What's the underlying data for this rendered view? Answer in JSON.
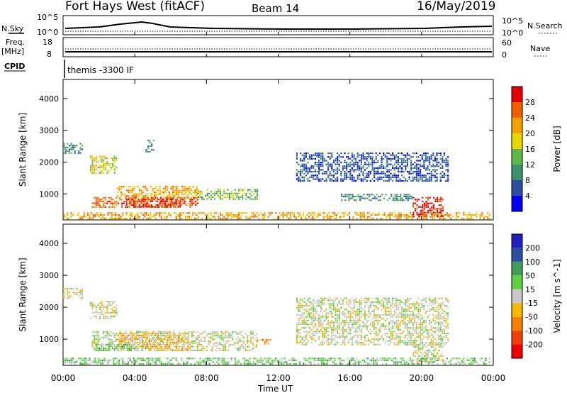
{
  "header": {
    "station": "Fort Hays West (fitACF)",
    "beam": "Beam 14",
    "date": "16/May/2019"
  },
  "summary": {
    "nsky_label": "N.Sky",
    "nsky_ticks": [
      "10^5",
      "10^0"
    ],
    "nsearch_label": "N.Search",
    "nsearch_ticks": [
      "10^5",
      "10^0"
    ],
    "freq_label_1": "Freq.",
    "freq_label_2": "[MHz]",
    "freq_ticks": [
      "18",
      "8"
    ],
    "nave_label": "Nave",
    "nave_ticks": [
      "60",
      "0"
    ],
    "cpid_label": "CPID",
    "cpid_text": "themis -3300 IF"
  },
  "colors": {
    "power": [
      "#0000ee",
      "#2b4fa0",
      "#3f8f6a",
      "#5fb84a",
      "#e8d800",
      "#f5a000",
      "#f06000",
      "#e00000"
    ],
    "velocity": [
      "#ee0000",
      "#f04000",
      "#f58000",
      "#f5b800",
      "#c8c8c8",
      "#5fd040",
      "#3f9f5a",
      "#2b4fa0",
      "#2020c0"
    ]
  },
  "chart_data": [
    {
      "type": "heatmap",
      "panel": "power",
      "xlabel": "",
      "ylabel": "Slant Range [km]",
      "ylim": [
        180,
        4600
      ],
      "yticks": [
        "1000",
        "2000",
        "3000",
        "4000"
      ],
      "ytick_values": [
        1000,
        2000,
        3000,
        4000
      ],
      "colorbar_label": "Power [dB]",
      "colorbar_ticks": [
        "4",
        "8",
        "12",
        "16",
        "20",
        "24",
        "28"
      ],
      "colorbar_range": [
        0,
        32
      ],
      "regions": [
        {
          "t0": 0.0,
          "t1": 1.1,
          "r0": 2300,
          "r1": 2600,
          "level": 2
        },
        {
          "t0": 1.5,
          "t1": 3.0,
          "r0": 1650,
          "r1": 2200,
          "level": 4
        },
        {
          "t0": 1.6,
          "t1": 7.5,
          "r0": 600,
          "r1": 900,
          "level": 6
        },
        {
          "t0": 3.0,
          "t1": 7.5,
          "r0": 850,
          "r1": 1250,
          "level": 5
        },
        {
          "t0": 7.5,
          "t1": 10.8,
          "r0": 820,
          "r1": 1150,
          "level": 3
        },
        {
          "t0": 3.5,
          "t1": 6.5,
          "r0": 560,
          "r1": 850,
          "level": 7
        },
        {
          "t0": 0.0,
          "t1": 23.8,
          "r0": 240,
          "r1": 420,
          "level": 5
        },
        {
          "t0": 13.0,
          "t1": 21.5,
          "r0": 1400,
          "r1": 2300,
          "level": 1
        },
        {
          "t0": 15.5,
          "t1": 19.5,
          "r0": 800,
          "r1": 1000,
          "level": 2
        },
        {
          "t0": 19.5,
          "t1": 21.2,
          "r0": 300,
          "r1": 900,
          "level": 7
        },
        {
          "t0": 4.6,
          "t1": 5.1,
          "r0": 2350,
          "r1": 2700,
          "level": 2
        }
      ]
    },
    {
      "type": "heatmap",
      "panel": "velocity",
      "xlabel": "Time UT",
      "ylabel": "Slant Range [km]",
      "ylim": [
        180,
        4600
      ],
      "yticks": [
        "1000",
        "2000",
        "3000",
        "4000"
      ],
      "ytick_values": [
        1000,
        2000,
        3000,
        4000
      ],
      "xticks": [
        "00:00",
        "04:00",
        "08:00",
        "12:00",
        "16:00",
        "20:00",
        "00:00"
      ],
      "xtick_values": [
        0,
        4,
        8,
        12,
        16,
        20,
        24
      ],
      "xlim": [
        0,
        24
      ],
      "colorbar_label": "Velocity [m s^-1]",
      "colorbar_ticks": [
        "-200",
        "-100",
        "-50",
        "-15",
        "15",
        "50",
        "100",
        "200"
      ],
      "regions": [
        {
          "t0": 0.0,
          "t1": 1.1,
          "r0": 2300,
          "r1": 2600,
          "level": 4
        },
        {
          "t0": 1.5,
          "t1": 3.0,
          "r0": 1650,
          "r1": 2200,
          "level": 4
        },
        {
          "t0": 1.6,
          "t1": 10.8,
          "r0": 620,
          "r1": 1250,
          "level": 4
        },
        {
          "t0": 3.0,
          "t1": 7.0,
          "r0": 650,
          "r1": 1200,
          "level": 3
        },
        {
          "t0": 1.8,
          "t1": 4.0,
          "r0": 620,
          "r1": 850,
          "level": 5
        },
        {
          "t0": 0.0,
          "t1": 23.8,
          "r0": 240,
          "r1": 420,
          "level": 5
        },
        {
          "t0": 13.0,
          "t1": 21.5,
          "r0": 800,
          "r1": 2300,
          "level": 4
        },
        {
          "t0": 19.5,
          "t1": 21.2,
          "r0": 300,
          "r1": 900,
          "level": 4
        },
        {
          "t0": 10.8,
          "t1": 11.6,
          "r0": 850,
          "r1": 1000,
          "level": 2
        }
      ]
    }
  ]
}
